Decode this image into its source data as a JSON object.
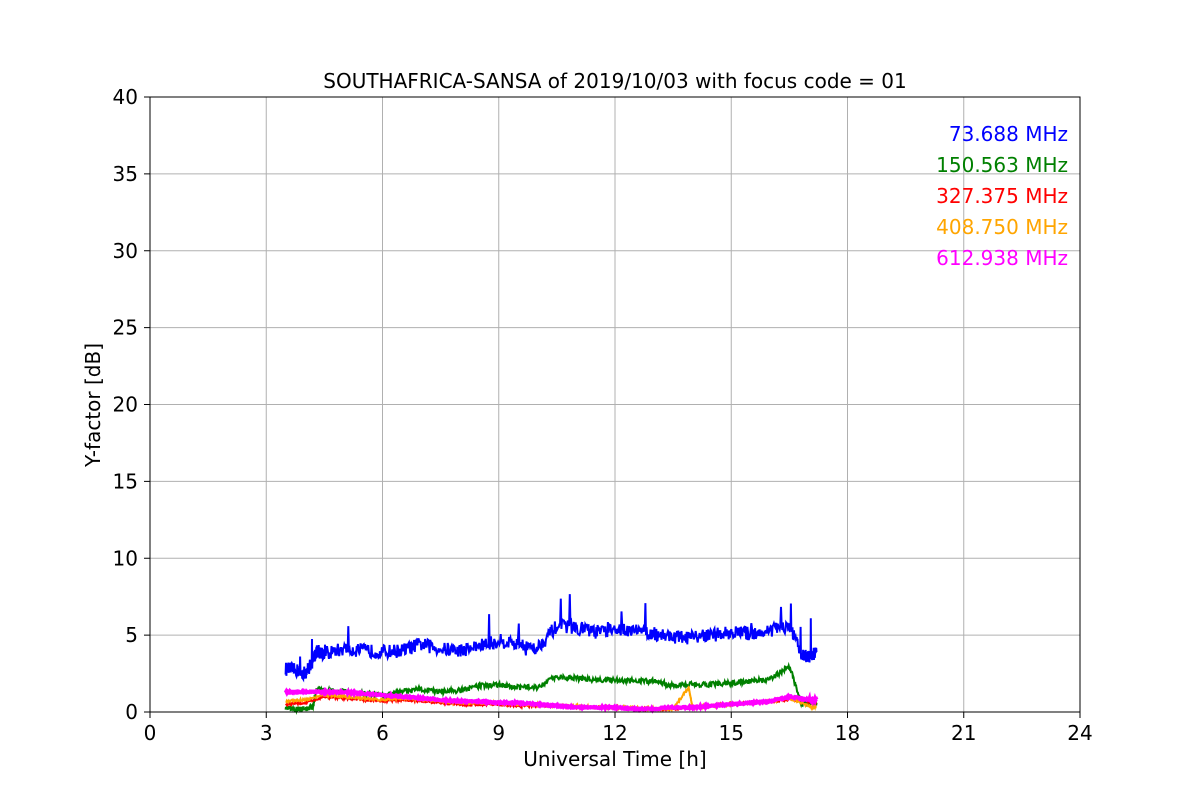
{
  "chart_data": {
    "type": "line",
    "title": "SOUTHAFRICA-SANSA of 2019/10/03 with focus code = 01",
    "xlabel": "Universal Time [h]",
    "ylabel": "Y-factor [dB]",
    "xlim": [
      0,
      24
    ],
    "ylim": [
      0,
      40
    ],
    "xticks": [
      0,
      3,
      6,
      9,
      12,
      15,
      18,
      21,
      24
    ],
    "yticks": [
      0,
      5,
      10,
      15,
      20,
      25,
      30,
      35,
      40
    ],
    "grid": true,
    "legend_position": "top-right",
    "series": [
      {
        "name": "73.688 MHz",
        "color": "#0000ff",
        "x": [
          3.5,
          3.8,
          4.0,
          4.2,
          4.3,
          4.5,
          5.0,
          5.5,
          6.0,
          6.5,
          7.0,
          7.5,
          8.0,
          8.5,
          9.0,
          9.5,
          10.0,
          10.5,
          11.0,
          11.5,
          12.0,
          12.5,
          13.0,
          13.5,
          14.0,
          14.5,
          15.0,
          15.5,
          16.0,
          16.5,
          16.8,
          17.0,
          17.2
        ],
        "y": [
          2.8,
          2.7,
          2.5,
          3.3,
          4.0,
          3.8,
          4.1,
          4.0,
          3.9,
          4.0,
          4.4,
          4.1,
          4.0,
          4.3,
          4.6,
          4.5,
          4.2,
          5.6,
          5.5,
          5.2,
          5.3,
          5.4,
          5.1,
          4.9,
          4.8,
          5.0,
          5.2,
          5.1,
          5.3,
          5.6,
          3.8,
          3.6,
          3.9
        ]
      },
      {
        "name": "150.563 MHz",
        "color": "#008000",
        "x": [
          3.5,
          3.8,
          4.0,
          4.2,
          4.3,
          4.5,
          5.0,
          5.5,
          6.0,
          6.5,
          7.0,
          7.5,
          8.0,
          8.5,
          9.0,
          9.5,
          10.0,
          10.5,
          11.0,
          11.5,
          12.0,
          12.5,
          13.0,
          13.5,
          14.0,
          14.5,
          15.0,
          15.5,
          16.0,
          16.5,
          16.8,
          17.0,
          17.2
        ],
        "y": [
          0.3,
          0.2,
          0.2,
          0.3,
          1.5,
          1.4,
          1.3,
          1.2,
          1.1,
          1.3,
          1.5,
          1.3,
          1.4,
          1.7,
          1.8,
          1.6,
          1.6,
          2.3,
          2.2,
          2.1,
          2.1,
          2.0,
          2.0,
          1.7,
          1.8,
          1.8,
          1.9,
          2.0,
          2.1,
          3.0,
          0.6,
          0.5,
          0.6
        ]
      },
      {
        "name": "327.375 MHz",
        "color": "#ff0000",
        "x": [
          3.5,
          4.0,
          4.5,
          5.0,
          5.5,
          6.0,
          6.5,
          7.0,
          7.5,
          8.0,
          8.5,
          9.0,
          9.5,
          10.0,
          10.5,
          11.0,
          11.5,
          12.0,
          12.5,
          13.0,
          13.5,
          14.0,
          14.5,
          15.0,
          15.5,
          16.0,
          16.5,
          17.0,
          17.2
        ],
        "y": [
          0.5,
          0.6,
          1.0,
          0.9,
          0.8,
          0.7,
          0.8,
          0.7,
          0.6,
          0.5,
          0.5,
          0.5,
          0.4,
          0.4,
          0.4,
          0.3,
          0.3,
          0.3,
          0.2,
          0.2,
          0.2,
          0.3,
          0.4,
          0.5,
          0.6,
          0.7,
          0.8,
          0.7,
          0.6
        ]
      },
      {
        "name": "408.750 MHz",
        "color": "#ffa500",
        "x": [
          3.5,
          4.0,
          4.5,
          5.0,
          5.5,
          6.0,
          6.5,
          7.0,
          7.5,
          8.0,
          8.5,
          9.0,
          9.5,
          10.0,
          10.5,
          11.0,
          11.5,
          12.0,
          12.5,
          13.0,
          13.5,
          13.9,
          14.0,
          14.5,
          15.0,
          15.5,
          16.0,
          16.5,
          17.0,
          17.2
        ],
        "y": [
          0.7,
          0.8,
          1.1,
          1.0,
          0.9,
          0.8,
          0.9,
          0.8,
          0.7,
          0.6,
          0.6,
          0.6,
          0.5,
          0.5,
          0.4,
          0.4,
          0.3,
          0.3,
          0.3,
          0.2,
          0.2,
          1.6,
          0.3,
          0.4,
          0.5,
          0.6,
          0.7,
          0.9,
          0.4,
          0.3
        ]
      },
      {
        "name": "612.938 MHz",
        "color": "#ff00ff",
        "x": [
          3.5,
          4.0,
          4.5,
          5.0,
          5.5,
          6.0,
          6.5,
          7.0,
          7.5,
          8.0,
          8.5,
          9.0,
          9.5,
          10.0,
          10.5,
          11.0,
          11.5,
          12.0,
          12.5,
          13.0,
          13.5,
          14.0,
          14.5,
          15.0,
          15.5,
          16.0,
          16.5,
          17.0,
          17.2
        ],
        "y": [
          1.3,
          1.3,
          1.3,
          1.3,
          1.2,
          1.1,
          1.0,
          0.9,
          0.8,
          0.7,
          0.7,
          0.6,
          0.6,
          0.5,
          0.4,
          0.3,
          0.3,
          0.3,
          0.2,
          0.2,
          0.3,
          0.3,
          0.4,
          0.5,
          0.6,
          0.7,
          1.0,
          0.8,
          0.8
        ]
      }
    ]
  }
}
